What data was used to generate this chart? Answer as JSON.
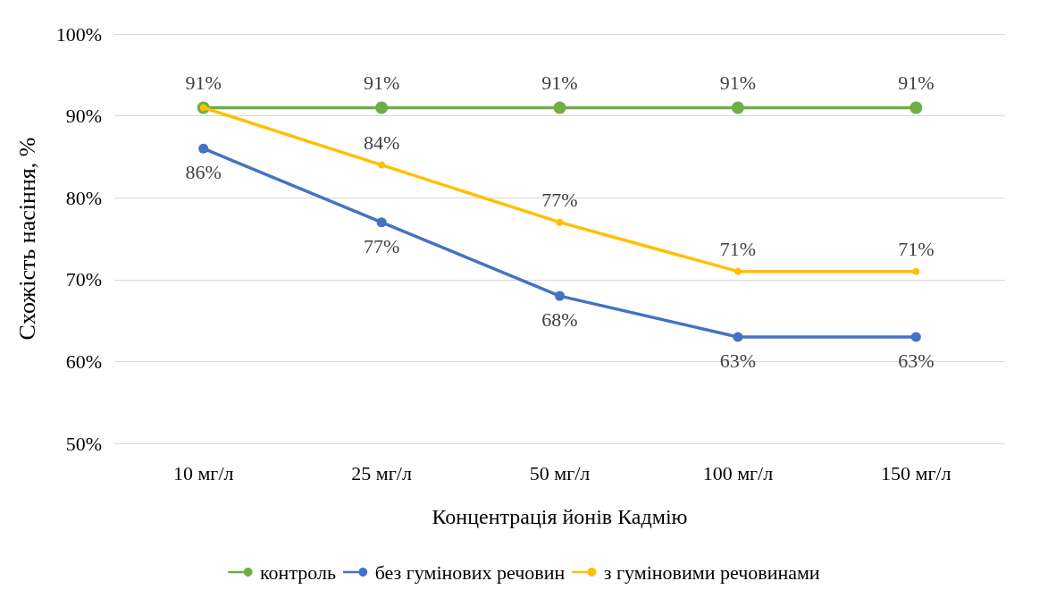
{
  "chart_data": {
    "type": "line",
    "xlabel": "Концентрація йонів Кадмію",
    "ylabel": "Схожість насіння, %",
    "categories": [
      "10 мг/л",
      "25 мг/л",
      "50 мг/л",
      "100 мг/л",
      "150 мг/л"
    ],
    "series": [
      {
        "name": "контроль",
        "color": "#70ad47",
        "values": [
          91,
          91,
          91,
          91,
          91
        ],
        "value_labels": [
          "91%",
          "91%",
          "91%",
          "91%",
          "91%"
        ]
      },
      {
        "name": "без гумінових речовин",
        "color": "#4472c4",
        "values": [
          86,
          77,
          68,
          63,
          63
        ],
        "value_labels": [
          "86%",
          "77%",
          "68%",
          "63%",
          "63%"
        ]
      },
      {
        "name": "з гуміновими речовинами",
        "color": "#ffc000",
        "values": [
          91,
          84,
          77,
          71,
          71
        ],
        "value_labels": [
          null,
          "84%",
          "77%",
          "71%",
          "71%"
        ]
      }
    ],
    "ylim": [
      50,
      100
    ],
    "yticks": [
      {
        "value": 50,
        "label": "50%"
      },
      {
        "value": 60,
        "label": "60%"
      },
      {
        "value": 70,
        "label": "70%"
      },
      {
        "value": 80,
        "label": "80%"
      },
      {
        "value": 90,
        "label": "90%"
      },
      {
        "value": 100,
        "label": "100%"
      }
    ],
    "grid": "y",
    "legend": "bottom",
    "marker": "circle",
    "line_style": "solid"
  }
}
